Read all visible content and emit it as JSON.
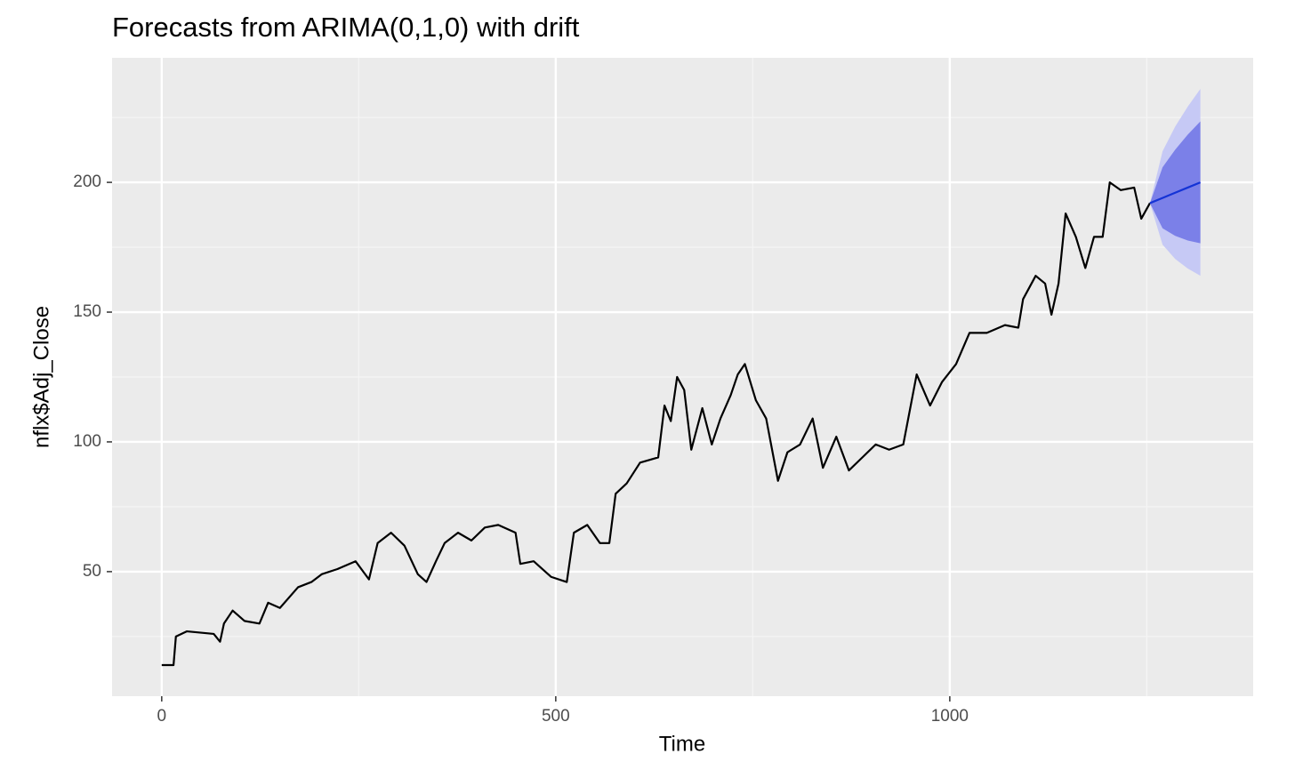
{
  "chart_data": {
    "type": "line",
    "title": "Forecasts from ARIMA(0,1,0) with drift",
    "x_label": "Time",
    "y_label": "nflx$Adj_Close",
    "xlim": [
      -63,
      1385
    ],
    "ylim": [
      2,
      248
    ],
    "xticks": [
      0,
      500,
      1000
    ],
    "yticks": [
      50,
      100,
      150,
      200
    ],
    "x_minor_grid": [
      250,
      750,
      1250
    ],
    "y_minor_grid": [
      25,
      75,
      125,
      175,
      225
    ],
    "grid": true,
    "series": [
      {
        "color": "#000000",
        "x": [
          0,
          15,
          18,
          32,
          66,
          74,
          79,
          90,
          105,
          124,
          135,
          150,
          173,
          190,
          203,
          223,
          246,
          263,
          274,
          291,
          308,
          325,
          336,
          348,
          359,
          376,
          393,
          410,
          427,
          449,
          455,
          472,
          494,
          514,
          523,
          540,
          556,
          568,
          576,
          590,
          607,
          630,
          638,
          646,
          654,
          663,
          672,
          686,
          698,
          709,
          722,
          731,
          740,
          754,
          767,
          782,
          794,
          810,
          826,
          839,
          856,
          872,
          889,
          906,
          923,
          941,
          958,
          975,
          990,
          1008,
          1025,
          1047,
          1070,
          1087,
          1093,
          1109,
          1121,
          1129,
          1138,
          1147,
          1160,
          1172,
          1183,
          1194,
          1203,
          1217,
          1234,
          1243,
          1254
        ],
        "values": [
          14,
          14,
          25,
          27,
          26,
          23,
          30,
          35,
          31,
          30,
          38,
          36,
          44,
          46,
          49,
          51,
          54,
          47,
          61,
          65,
          60,
          49,
          46,
          54,
          61,
          65,
          62,
          67,
          68,
          65,
          53,
          54,
          48,
          46,
          65,
          68,
          61,
          61,
          80,
          84,
          92,
          94,
          114,
          108,
          125,
          120,
          97,
          113,
          99,
          109,
          118,
          126,
          130,
          116,
          109,
          85,
          96,
          99,
          109,
          90,
          102,
          89,
          94,
          99,
          97,
          99,
          126,
          114,
          123,
          130,
          142,
          142,
          145,
          144,
          155,
          164,
          161,
          149,
          161,
          188,
          179,
          167,
          179,
          179,
          200,
          197,
          198,
          186,
          192
        ]
      }
    ],
    "forecast": {
      "line_color": "#1433d6",
      "band80_color": "#7b80e8",
      "band95_color": "#c6c9f5",
      "x": [
        1254,
        1270,
        1286,
        1302,
        1318
      ],
      "values": [
        192,
        194,
        196,
        198,
        200
      ],
      "lo80": [
        192,
        182.3,
        179.4,
        177.6,
        176.5
      ],
      "hi80": [
        192,
        205.8,
        212.6,
        218.4,
        223.5
      ],
      "lo95": [
        192,
        176,
        170.5,
        166.8,
        164
      ],
      "hi95": [
        192,
        212,
        221.5,
        229.2,
        236
      ]
    }
  }
}
